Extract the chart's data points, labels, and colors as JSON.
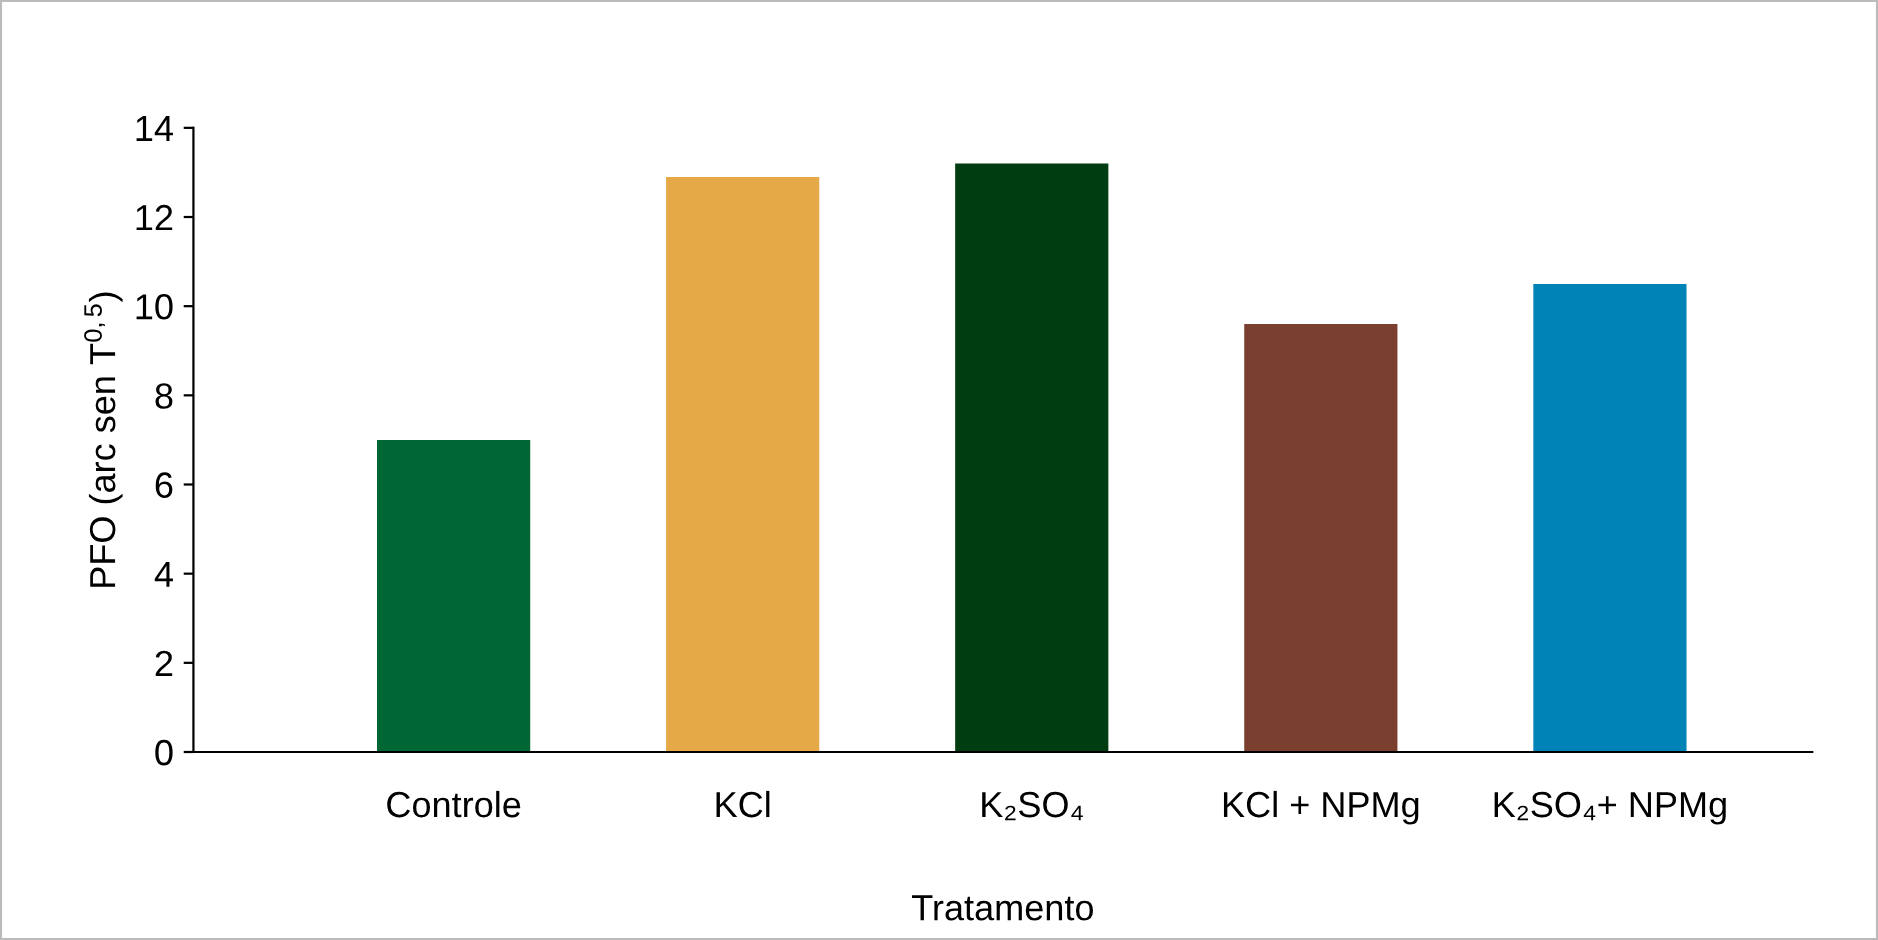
{
  "chart_data": {
    "type": "bar",
    "xlabel": "Tratamento",
    "ylabel": "PFO (arc sen T$^{0,5}$)",
    "categories": [
      "Controle",
      "KCl",
      "K₂SO₄",
      "KCl + NPMg",
      "K₂SO₄+ NPMg"
    ],
    "values": [
      7.0,
      12.9,
      13.2,
      9.6,
      10.5
    ],
    "colors": [
      "#006633",
      "#e5aa47",
      "#003d10",
      "#7a3f2e",
      "#0084b8"
    ],
    "ylim": [
      0,
      14
    ],
    "yticks": [
      0,
      2,
      4,
      6,
      8,
      10,
      12,
      14
    ],
    "grid": false,
    "legend": false
  }
}
